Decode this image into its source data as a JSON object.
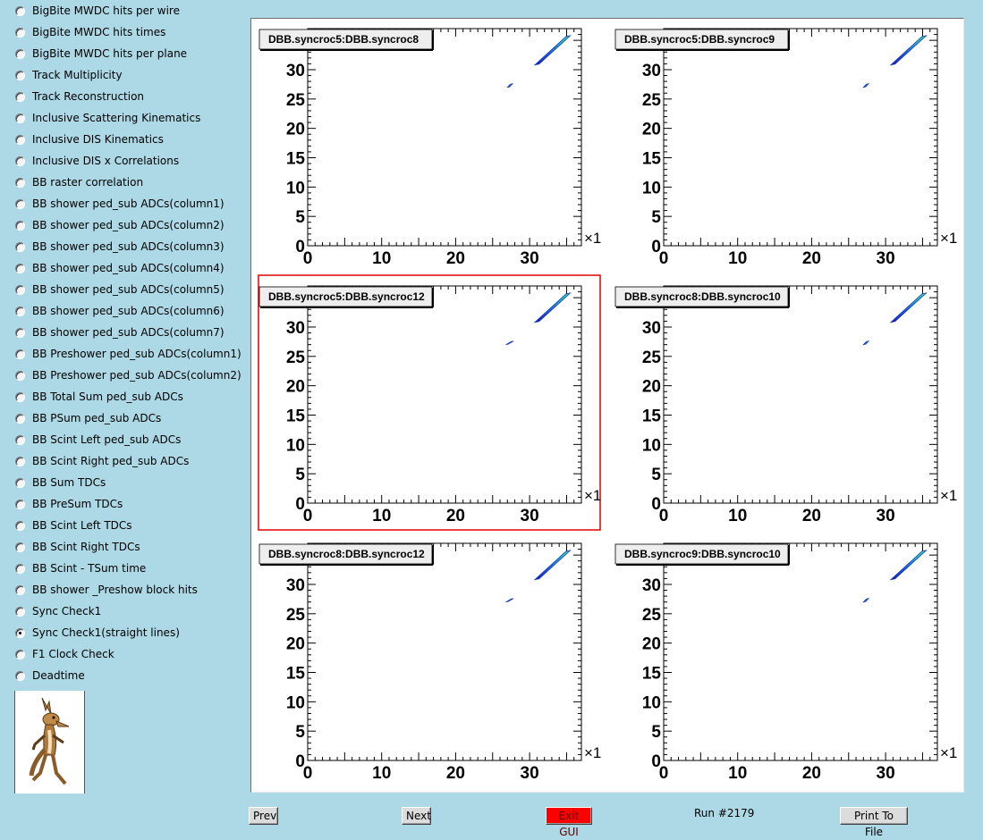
{
  "sidebar": {
    "items": [
      {
        "label": "BigBite MWDC hits per wire",
        "selected": false
      },
      {
        "label": "BigBite MWDC hits times",
        "selected": false
      },
      {
        "label": "BigBite MWDC hits per plane",
        "selected": false
      },
      {
        "label": "Track Multiplicity",
        "selected": false
      },
      {
        "label": "Track Reconstruction",
        "selected": false
      },
      {
        "label": "Inclusive Scattering Kinematics",
        "selected": false
      },
      {
        "label": "Inclusive DIS Kinematics",
        "selected": false
      },
      {
        "label": "Inclusive DIS x Correlations",
        "selected": false
      },
      {
        "label": "BB raster correlation",
        "selected": false
      },
      {
        "label": "BB shower ped_sub ADCs(column1)",
        "selected": false
      },
      {
        "label": "BB shower ped_sub ADCs(column2)",
        "selected": false
      },
      {
        "label": "BB shower ped_sub ADCs(column3)",
        "selected": false
      },
      {
        "label": "BB shower ped_sub ADCs(column4)",
        "selected": false
      },
      {
        "label": "BB shower ped_sub ADCs(column5)",
        "selected": false
      },
      {
        "label": "BB shower ped_sub ADCs(column6)",
        "selected": false
      },
      {
        "label": "BB shower ped_sub ADCs(column7)",
        "selected": false
      },
      {
        "label": "BB Preshower ped_sub ADCs(column1)",
        "selected": false
      },
      {
        "label": "BB Preshower ped_sub ADCs(column2)",
        "selected": false
      },
      {
        "label": "BB Total Sum ped_sub ADCs",
        "selected": false
      },
      {
        "label": "BB PSum ped_sub ADCs",
        "selected": false
      },
      {
        "label": "BB Scint Left ped_sub ADCs",
        "selected": false
      },
      {
        "label": "BB Scint Right ped_sub ADCs",
        "selected": false
      },
      {
        "label": "BB Sum TDCs",
        "selected": false
      },
      {
        "label": "BB PreSum TDCs",
        "selected": false
      },
      {
        "label": "BB Scint Left TDCs",
        "selected": false
      },
      {
        "label": "BB Scint Right TDCs",
        "selected": false
      },
      {
        "label": "BB Scint - TSum time",
        "selected": false
      },
      {
        "label": "BB shower _Preshow block hits",
        "selected": false
      },
      {
        "label": "Sync Check1",
        "selected": false
      },
      {
        "label": "Sync Check1(straight lines)",
        "selected": true
      },
      {
        "label": "F1 Clock Check",
        "selected": false
      },
      {
        "label": "Deadtime",
        "selected": false
      }
    ]
  },
  "buttons": {
    "prev": "Prev",
    "next": "Next",
    "exit": "Exit GUI",
    "print": "Print To File"
  },
  "run_label": "Run #2179",
  "colors": {
    "background": "#add8e6",
    "selected_pad_border": "#e00000",
    "exit_button": "#ff0000"
  },
  "chart_data": [
    {
      "type": "heatmap",
      "title": "DBB.syncroc5:DBB.syncroc8",
      "xlim": [
        0,
        37
      ],
      "ylim": [
        0,
        37
      ],
      "x_ticks": [
        0,
        10,
        20,
        30
      ],
      "y_ticks": [
        0,
        5,
        10,
        15,
        20,
        25,
        30,
        35
      ],
      "x_exponent": "×1",
      "selected": false,
      "clusters": [
        {
          "x": [
            27,
            27.7
          ],
          "y": [
            27,
            27.6
          ]
        },
        {
          "x": [
            30.7,
            35.5
          ],
          "y": [
            30.8,
            35.8
          ]
        }
      ]
    },
    {
      "type": "heatmap",
      "title": "DBB.syncroc5:DBB.syncroc9",
      "xlim": [
        0,
        37
      ],
      "ylim": [
        0,
        37
      ],
      "x_ticks": [
        0,
        10,
        20,
        30
      ],
      "y_ticks": [
        0,
        5,
        10,
        15,
        20,
        25,
        30,
        35
      ],
      "x_exponent": "×1",
      "selected": false,
      "clusters": [
        {
          "x": [
            27,
            27.7
          ],
          "y": [
            27,
            27.6
          ]
        },
        {
          "x": [
            30.7,
            35.5
          ],
          "y": [
            30.8,
            35.8
          ]
        }
      ]
    },
    {
      "type": "heatmap",
      "title": "DBB.syncroc5:DBB.syncroc12",
      "xlim": [
        0,
        37
      ],
      "ylim": [
        0,
        37
      ],
      "x_ticks": [
        0,
        10,
        20,
        30
      ],
      "y_ticks": [
        0,
        5,
        10,
        15,
        20,
        25,
        30,
        35
      ],
      "x_exponent": "×1",
      "selected": true,
      "clusters": [
        {
          "x": [
            26.8,
            27.8
          ],
          "y": [
            27,
            27.6
          ]
        },
        {
          "x": [
            30.7,
            35.5
          ],
          "y": [
            30.8,
            35.8
          ]
        }
      ]
    },
    {
      "type": "heatmap",
      "title": "DBB.syncroc8:DBB.syncroc10",
      "xlim": [
        0,
        37
      ],
      "ylim": [
        0,
        37
      ],
      "x_ticks": [
        0,
        10,
        20,
        30
      ],
      "y_ticks": [
        0,
        5,
        10,
        15,
        20,
        25,
        30,
        35
      ],
      "x_exponent": "×1",
      "selected": false,
      "clusters": [
        {
          "x": [
            27,
            27.7
          ],
          "y": [
            27,
            27.6
          ]
        },
        {
          "x": [
            30.7,
            35.5
          ],
          "y": [
            30.8,
            35.8
          ]
        }
      ]
    },
    {
      "type": "heatmap",
      "title": "DBB.syncroc8:DBB.syncroc12",
      "xlim": [
        0,
        37
      ],
      "ylim": [
        0,
        37
      ],
      "x_ticks": [
        0,
        10,
        20,
        30
      ],
      "y_ticks": [
        0,
        5,
        10,
        15,
        20,
        25,
        30,
        35
      ],
      "x_exponent": "×1",
      "selected": false,
      "clusters": [
        {
          "x": [
            26.8,
            27.8
          ],
          "y": [
            27,
            27.6
          ]
        },
        {
          "x": [
            30.7,
            35.5
          ],
          "y": [
            30.8,
            35.8
          ]
        }
      ]
    },
    {
      "type": "heatmap",
      "title": "DBB.syncroc9:DBB.syncroc10",
      "xlim": [
        0,
        37
      ],
      "ylim": [
        0,
        37
      ],
      "x_ticks": [
        0,
        10,
        20,
        30
      ],
      "y_ticks": [
        0,
        5,
        10,
        15,
        20,
        25,
        30,
        35
      ],
      "x_exponent": "×1",
      "selected": false,
      "clusters": [
        {
          "x": [
            27,
            27.7
          ],
          "y": [
            27,
            27.6
          ]
        },
        {
          "x": [
            30.7,
            35.5
          ],
          "y": [
            30.8,
            35.8
          ]
        }
      ]
    }
  ]
}
